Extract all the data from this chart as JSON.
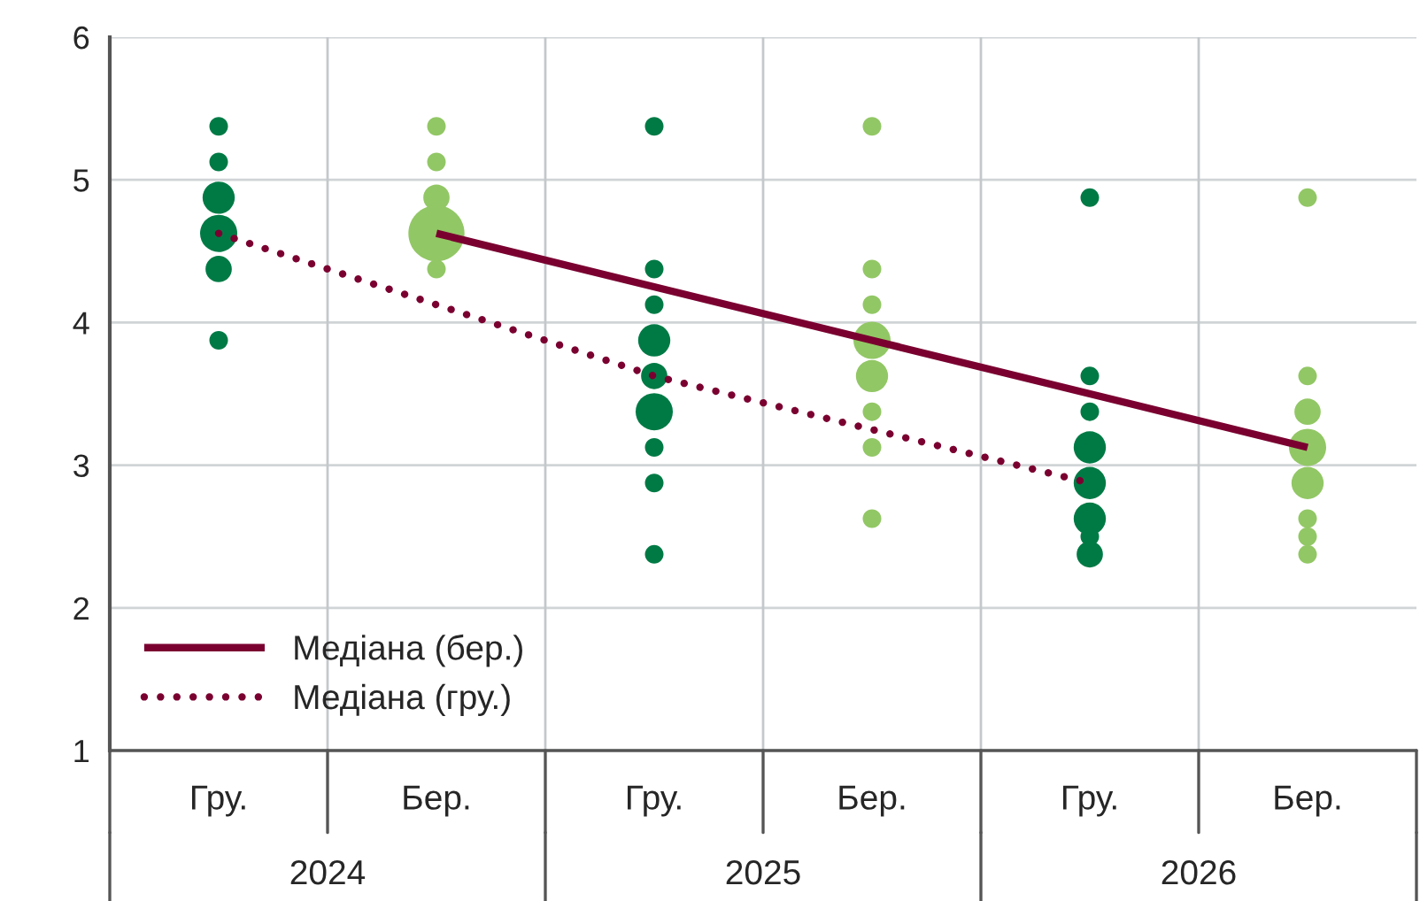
{
  "chart_data": {
    "type": "bubble",
    "categories": [
      "Гру.",
      "Бер.",
      "Гру.",
      "Бер.",
      "Гру.",
      "Бер."
    ],
    "annotations": [
      "2024",
      "2025",
      "2026"
    ],
    "ylim": [
      1,
      6
    ],
    "yticks": [
      1,
      2,
      3,
      4,
      5,
      6
    ],
    "grid": true,
    "legend": "bottom left",
    "series": [
      {
        "values": [
          5.375,
          5.375,
          5.375,
          5.375,
          null,
          null
        ],
        "sizes": [
          0.11,
          0.11,
          0.11,
          0.11,
          null,
          null
        ],
        "colors": [
          "#007a45",
          "#92c765",
          "#007a45",
          "#92c765",
          "#007a45",
          "#92c765"
        ]
      },
      {
        "values": [
          5.125,
          5.125,
          null,
          null,
          null,
          null
        ],
        "sizes": [
          0.11,
          0.11,
          null,
          null,
          null,
          null
        ],
        "colors": [
          "#007a45",
          "#92c765",
          "#007a45",
          "#92c765",
          "#007a45",
          "#92c765"
        ]
      },
      {
        "values": [
          4.875,
          4.875,
          null,
          null,
          4.875,
          4.875
        ],
        "sizes": [
          0.33,
          0.22,
          null,
          null,
          0.11,
          0.11
        ],
        "colors": [
          "#007a45",
          "#92c765",
          "#007a45",
          "#92c765",
          "#007a45",
          "#92c765"
        ]
      },
      {
        "values": [
          4.625,
          4.625,
          null,
          null,
          null,
          null
        ],
        "sizes": [
          0.44,
          1,
          null,
          null,
          null,
          null
        ],
        "colors": [
          "#007a45",
          "#92c765",
          "#007a45",
          "#92c765",
          "#007a45",
          "#92c765"
        ]
      },
      {
        "values": [
          4.375,
          4.375,
          4.375,
          4.375,
          null,
          null
        ],
        "sizes": [
          0.22,
          0.11,
          0.11,
          0.11,
          null,
          null
        ],
        "colors": [
          "#007a45",
          "#92c765",
          "#007a45",
          "#92c765",
          "#007a45",
          "#92c765"
        ]
      },
      {
        "values": [
          null,
          null,
          4.125,
          4.125,
          null,
          null
        ],
        "sizes": [
          null,
          null,
          0.11,
          0.11,
          null,
          null
        ],
        "colors": [
          "#007a45",
          "#92c765",
          "#007a45",
          "#92c765",
          "#007a45",
          "#92c765"
        ]
      },
      {
        "values": [
          3.875,
          null,
          3.875,
          3.875,
          null,
          null
        ],
        "sizes": [
          0.11,
          null,
          0.33,
          0.44,
          null,
          null
        ],
        "colors": [
          "#007a45",
          "#92c765",
          "#007a45",
          "#92c765",
          "#007a45",
          "#92c765"
        ]
      },
      {
        "values": [
          null,
          null,
          3.625,
          3.625,
          3.625,
          3.625
        ],
        "sizes": [
          null,
          null,
          0.22,
          0.33,
          0.11,
          0.11
        ],
        "colors": [
          "#007a45",
          "#92c765",
          "#007a45",
          "#92c765",
          "#007a45",
          "#92c765"
        ]
      },
      {
        "values": [
          null,
          null,
          3.375,
          3.375,
          3.375,
          3.375
        ],
        "sizes": [
          null,
          null,
          0.44,
          0.11,
          0.11,
          0.22
        ],
        "colors": [
          "#007a45",
          "#92c765",
          "#007a45",
          "#92c765",
          "#007a45",
          "#92c765"
        ]
      },
      {
        "values": [
          null,
          null,
          3.125,
          3.125,
          3.125,
          3.125
        ],
        "sizes": [
          null,
          null,
          0.11,
          0.11,
          0.33,
          0.44
        ],
        "colors": [
          "#007a45",
          "#92c765",
          "#007a45",
          "#92c765",
          "#007a45",
          "#92c765"
        ]
      },
      {
        "values": [
          null,
          null,
          2.875,
          null,
          2.875,
          2.875
        ],
        "sizes": [
          null,
          null,
          0.11,
          null,
          0.33,
          0.33
        ],
        "colors": [
          "#007a45",
          "#92c765",
          "#007a45",
          "#92c765",
          "#007a45",
          "#92c765"
        ]
      },
      {
        "values": [
          null,
          null,
          null,
          2.625,
          2.625,
          2.625
        ],
        "sizes": [
          null,
          null,
          null,
          0.11,
          0.33,
          0.11
        ],
        "colors": [
          "#007a45",
          "#92c765",
          "#007a45",
          "#92c765",
          "#007a45",
          "#92c765"
        ]
      },
      {
        "values": [
          null,
          null,
          null,
          null,
          2.5,
          2.5
        ],
        "sizes": [
          null,
          null,
          null,
          null,
          0.11,
          0.11
        ],
        "colors": [
          "#007a45",
          "#92c765",
          "#007a45",
          "#92c765",
          "#007a45",
          "#92c765"
        ]
      },
      {
        "values": [
          null,
          null,
          2.375,
          null,
          2.375,
          2.375
        ],
        "sizes": [
          null,
          null,
          0.11,
          null,
          0.22,
          0.11
        ],
        "colors": [
          "#007a45",
          "#92c765",
          "#007a45",
          "#92c765",
          "#007a45",
          "#92c765"
        ]
      },
      {
        "type": "line",
        "name": "Медіана (бер.)",
        "color": "#7a0030",
        "line_style": "solid",
        "values": [
          null,
          4.625,
          null,
          3.875,
          null,
          3.125
        ]
      },
      {
        "type": "line",
        "name": "Медіана (гру.)",
        "color": "#7a0030",
        "line_style": "dotted",
        "values": [
          4.625,
          null,
          3.625,
          null,
          2.875,
          null
        ]
      }
    ]
  }
}
